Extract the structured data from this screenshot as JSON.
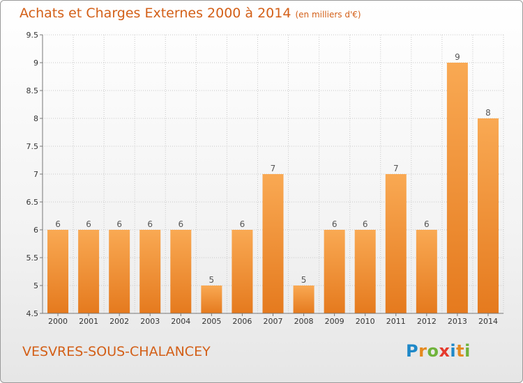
{
  "title": "Achats et Charges Externes 2000 à 2014",
  "subtitle": "(en milliers d'€)",
  "commune": "VESVRES-SOUS-CHALANCEY",
  "logo": {
    "letters": [
      "P",
      "r",
      "o",
      "x",
      "i",
      "t",
      "i"
    ],
    "colors": [
      "#1e88c8",
      "#e58a1f",
      "#6fb33b",
      "#e53a2d",
      "#1e88c8",
      "#e58a1f",
      "#6fb33b"
    ]
  },
  "colors": {
    "bar_light": "#f9a953",
    "bar_dark": "#e57a1e",
    "accent": "#d35f17"
  },
  "chart_data": {
    "type": "bar",
    "categories": [
      "2000",
      "2001",
      "2002",
      "2003",
      "2004",
      "2005",
      "2006",
      "2007",
      "2008",
      "2009",
      "2010",
      "2011",
      "2012",
      "2013",
      "2014"
    ],
    "values": [
      6,
      6,
      6,
      6,
      6,
      5,
      6,
      7,
      5,
      6,
      6,
      7,
      6,
      9,
      8
    ],
    "labels": [
      "6",
      "6",
      "6",
      "6",
      "6",
      "5",
      "6",
      "7",
      "5",
      "6",
      "6",
      "7",
      "6",
      "9",
      "8"
    ],
    "ylim": [
      4.5,
      9.5
    ],
    "yticks": [
      "4.5",
      "5",
      "5.5",
      "6",
      "6.5",
      "7",
      "7.5",
      "8",
      "8.5",
      "9",
      "9.5"
    ],
    "grid": true
  }
}
